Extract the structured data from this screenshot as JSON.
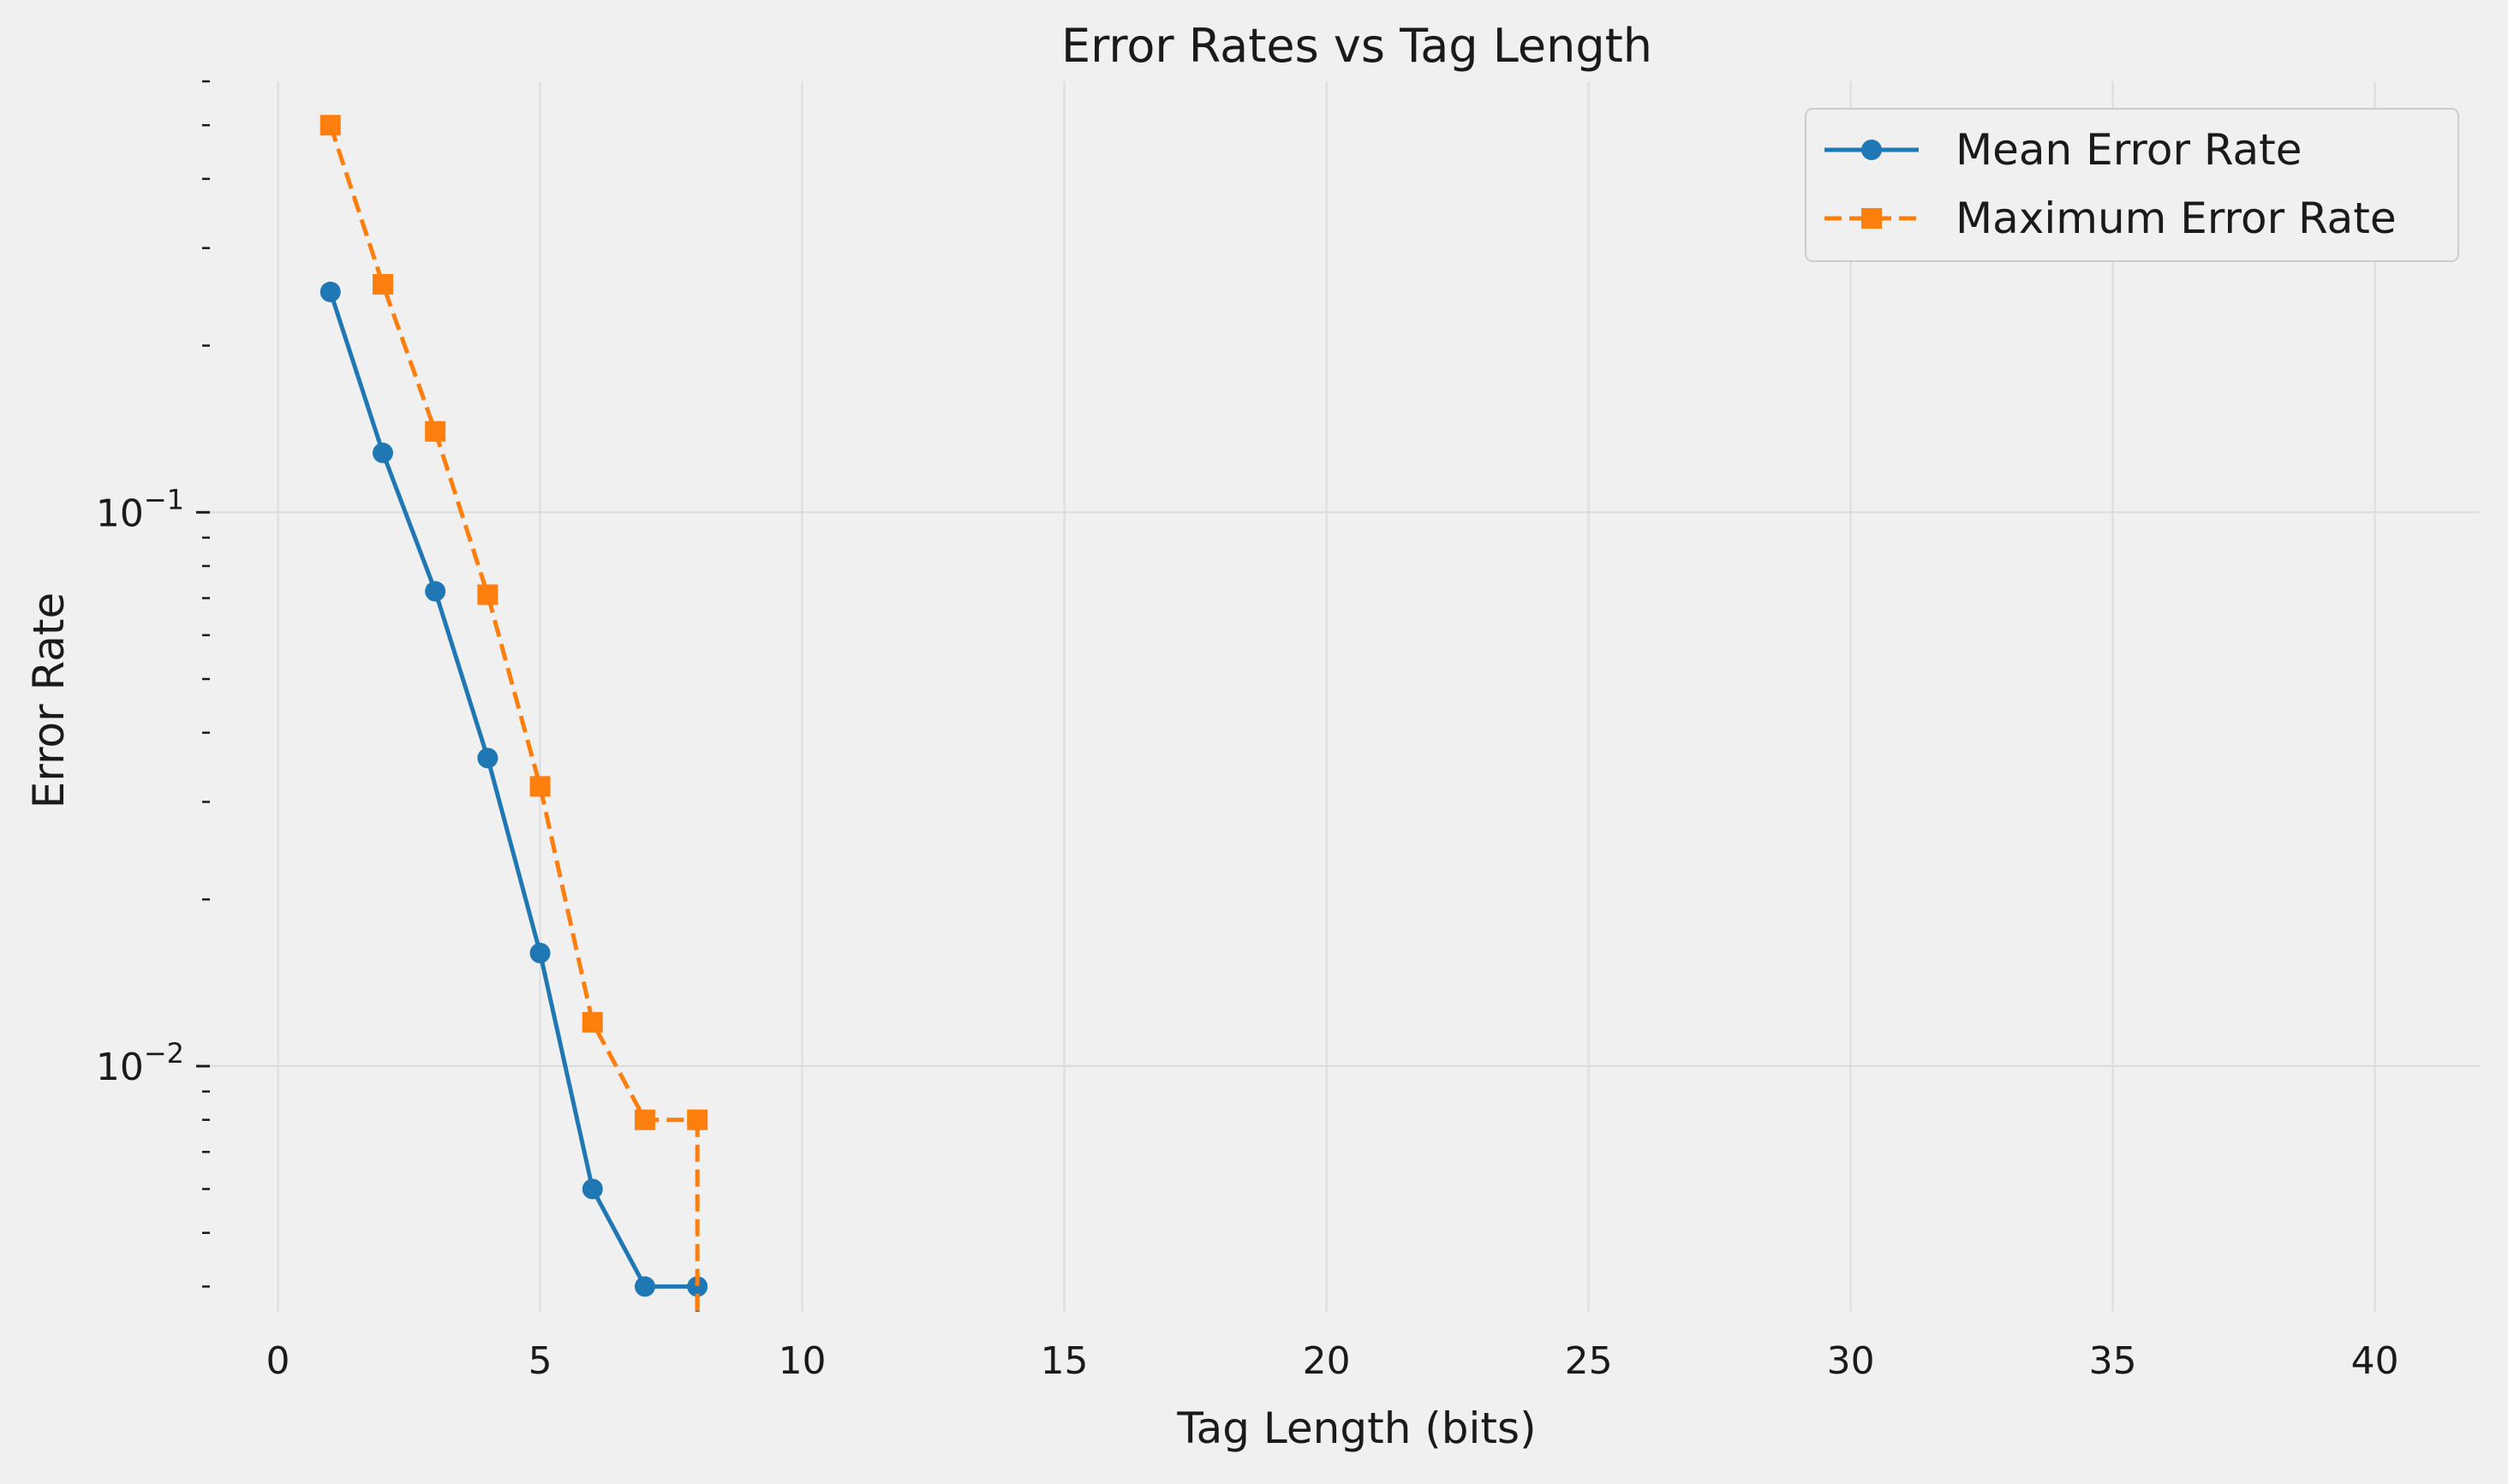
{
  "chart_data": {
    "type": "line",
    "title": "Error Rates vs Tag Length",
    "xlabel": "Tag Length (bits)",
    "ylabel": "Error Rate",
    "xlim": [
      -1.3,
      42
    ],
    "ylim": [
      0.0036,
      0.6
    ],
    "yscale": "log",
    "x_ticks": [
      0,
      5,
      10,
      15,
      20,
      25,
      30,
      35,
      40
    ],
    "x_tick_labels": [
      "0",
      "5",
      "10",
      "15",
      "20",
      "25",
      "30",
      "35",
      "40"
    ],
    "y_ticks": [
      0.01,
      0.1
    ],
    "y_tick_labels": [
      {
        "base": "10",
        "exp": "−2"
      },
      {
        "base": "10",
        "exp": "−1"
      }
    ],
    "y_minor_ticks": [
      0.004,
      0.005,
      0.006,
      0.007,
      0.008,
      0.009,
      0.02,
      0.03,
      0.04,
      0.05,
      0.06,
      0.07,
      0.08,
      0.09,
      0.2,
      0.3,
      0.4,
      0.5,
      0.6
    ],
    "grid": true,
    "legend_position": "top-right",
    "series": [
      {
        "name": "Mean Error Rate",
        "color": "#1f77b4",
        "linestyle": "solid",
        "marker": "circle",
        "x": [
          1,
          2,
          3,
          4,
          5,
          6,
          7,
          8
        ],
        "y": [
          0.25,
          0.128,
          0.072,
          0.036,
          0.016,
          0.006,
          0.004,
          0.004
        ]
      },
      {
        "name": "Maximum Error Rate",
        "color": "#ff7f0e",
        "linestyle": "dashed",
        "marker": "square",
        "x": [
          1,
          2,
          3,
          4,
          5,
          6,
          7,
          8
        ],
        "y": [
          0.5,
          0.258,
          0.14,
          0.071,
          0.032,
          0.012,
          0.008,
          0.008
        ]
      }
    ]
  }
}
